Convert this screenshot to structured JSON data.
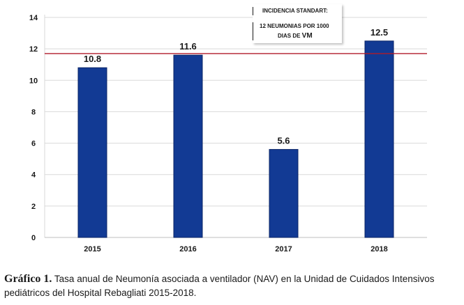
{
  "chart_data": {
    "type": "bar",
    "categories": [
      "2015",
      "2016",
      "2017",
      "2018"
    ],
    "values": [
      10.8,
      11.6,
      5.6,
      12.5
    ],
    "data_labels": [
      "10.8",
      "11.6",
      "5.6",
      "12.5"
    ],
    "ylim": [
      0,
      14
    ],
    "yticks": [
      0,
      2,
      4,
      6,
      8,
      10,
      12,
      14
    ],
    "ytick_labels": [
      "0",
      "2",
      "4",
      "6",
      "8",
      "10",
      "12",
      "14"
    ],
    "grid": true,
    "reference_line": 11.7,
    "title": "",
    "xlabel": "",
    "ylabel": "",
    "bar_color": "#123a94",
    "reference_line_color": "#b01a2a",
    "grid_color": "#d9d9d9"
  },
  "callout": {
    "title": "INCIDENCIA STANDART:",
    "line1": "12 NEUMONIAS POR 1000",
    "line2_prefix": "DIAS DE ",
    "line2_suffix": "VM"
  },
  "caption": {
    "label": "Gráfico 1.",
    "text": " Tasa anual de Neumonía asociada a ventilador (NAV) en la Unidad de Cuidados Intensivos pediátricos del Hospital Rebagliati 2015-2018."
  }
}
